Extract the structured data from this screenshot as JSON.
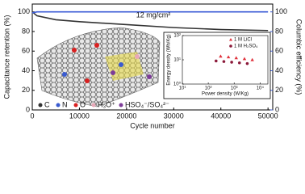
{
  "chart_data": [
    {
      "type": "line",
      "x_label": "Cycle number",
      "y_label": "Capacitance retention (%)",
      "y2_label": "Columbic efficiency (%)",
      "annotation": "12 mg/cm²",
      "x": [
        0,
        1000,
        5000,
        10000,
        20000,
        30000,
        40000,
        50000
      ],
      "series": [
        {
          "name": "Capacitance retention",
          "color": "#333333",
          "axis": "y",
          "values": [
            100,
            96,
            92,
            90,
            87,
            84,
            82,
            81
          ]
        },
        {
          "name": "Columbic efficiency",
          "color": "#3b5bd6",
          "axis": "y2",
          "values": [
            99,
            100,
            100,
            100,
            100,
            100,
            100,
            100
          ]
        }
      ],
      "xlim": [
        0,
        51000
      ],
      "xticks": [
        0,
        10000,
        20000,
        30000,
        40000,
        50000
      ],
      "ylim": [
        0,
        108
      ],
      "yticks": [
        0,
        20,
        40,
        60,
        80,
        100
      ],
      "y2lim": [
        0,
        108
      ],
      "y2ticks": [
        0,
        20,
        40,
        60,
        80,
        100
      ]
    },
    {
      "type": "scatter",
      "x_label": "Power density (W/Kg)",
      "y_label": "Energy density (Wh/Kg)",
      "xscale": "log",
      "yscale": "log",
      "xlim": [
        10,
        20000
      ],
      "xticks": [
        {
          "value": 10,
          "label": "10¹"
        },
        {
          "value": 100,
          "label": "10²"
        },
        {
          "value": 1000,
          "label": "10³"
        },
        {
          "value": 10000,
          "label": "10⁴"
        }
      ],
      "ylim": [
        1,
        100
      ],
      "yticks": [
        {
          "value": 1,
          "label": "10⁰"
        },
        {
          "value": 10,
          "label": "10¹"
        },
        {
          "value": 100,
          "label": "10²"
        }
      ],
      "legend": "upper right",
      "series": [
        {
          "name": "1 M LiCl",
          "color": "#e0303a",
          "marker": "triangle",
          "x": [
            300,
            600,
            1200,
            2500,
            5000
          ],
          "values": [
            14,
            13,
            12,
            11,
            10
          ]
        },
        {
          "name": "1 M H₂SO₄",
          "color": "#8b1a3a",
          "marker": "circle",
          "x": [
            200,
            400,
            800,
            1600,
            3200
          ],
          "values": [
            9,
            8.5,
            8,
            7.5,
            7
          ]
        }
      ]
    }
  ],
  "illustration": {
    "labels": [
      "C",
      "N",
      "O",
      "H₃O⁺",
      "HSO₄⁻/SO₄²⁻"
    ]
  }
}
